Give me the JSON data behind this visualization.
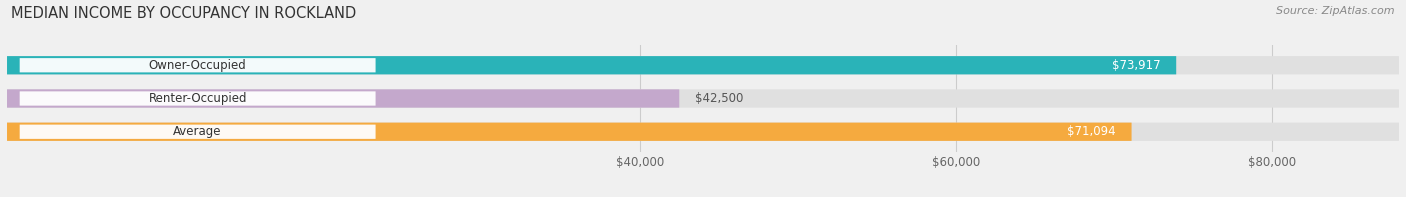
{
  "title": "MEDIAN INCOME BY OCCUPANCY IN ROCKLAND",
  "source": "Source: ZipAtlas.com",
  "categories": [
    "Owner-Occupied",
    "Renter-Occupied",
    "Average"
  ],
  "values": [
    73917,
    42500,
    71094
  ],
  "bar_colors": [
    "#2ab3b8",
    "#c4a8cc",
    "#f5aa3f"
  ],
  "x_min": 0,
  "x_max": 88000,
  "x_ticks": [
    40000,
    60000,
    80000
  ],
  "x_tick_labels": [
    "$40,000",
    "$60,000",
    "$80,000"
  ],
  "bar_height": 0.55,
  "background_color": "#f0f0f0",
  "bar_bg_color": "#e0e0e0",
  "title_fontsize": 10.5,
  "source_fontsize": 8,
  "label_fontsize": 8.5,
  "value_fontsize": 8.5
}
